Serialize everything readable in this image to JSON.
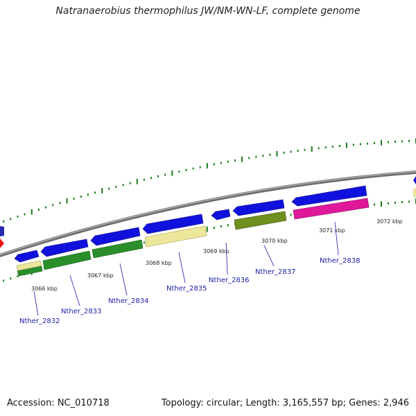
{
  "title": "Natranaerobius thermophilus JW/NM-WN-LF, complete genome",
  "footer": {
    "accession": "Accession: NC_010718",
    "summary": "Topology: circular; Length: 3,165,557 bp; Genes: 2,946"
  },
  "colors": {
    "backbone": "#8a8a8a",
    "tick": "#1e7a1e",
    "blue": "#1111dd",
    "green": "#2a8f2a",
    "olive": "#6f8f1f",
    "khaki": "#ece79a",
    "magenta": "#e0189a",
    "red": "#ee1111",
    "label": "#1a1aa6"
  },
  "kbp_labels": [
    "3066 kbp",
    "3067 kbp",
    "3068 kbp",
    "3069 kbp",
    "3070 kbp",
    "3071 kbp",
    "3072 kbp"
  ],
  "gene_labels": [
    "Nther_2832",
    "Nther_2833",
    "Nther_2834",
    "Nther_2835",
    "Nther_2836",
    "Nther_2837",
    "Nther_2838"
  ]
}
